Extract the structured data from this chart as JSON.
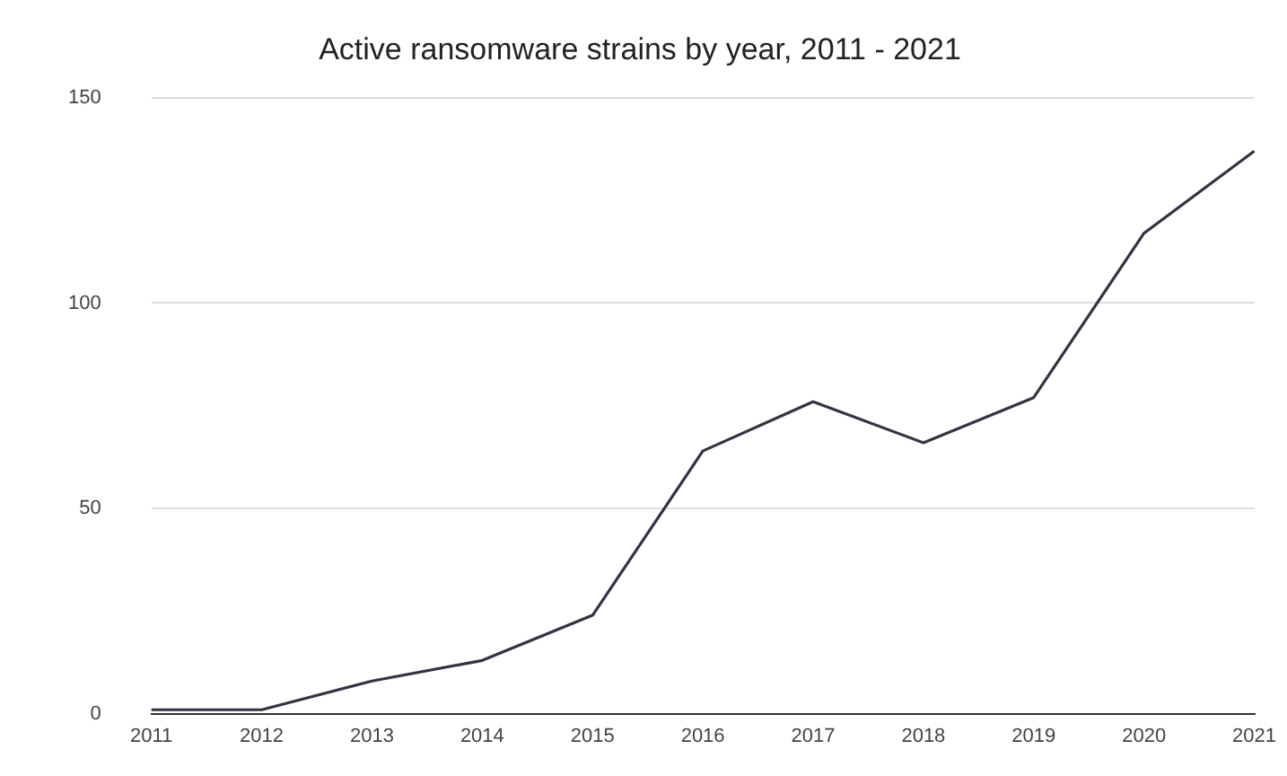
{
  "chart_data": {
    "type": "line",
    "title": "Active ransomware strains by year, 2011 - 2021",
    "categories": [
      "2011",
      "2012",
      "2013",
      "2014",
      "2015",
      "2016",
      "2017",
      "2018",
      "2019",
      "2020",
      "2021"
    ],
    "series": [
      {
        "color": "#333344",
        "values": [
          1,
          1,
          8,
          13,
          24,
          64,
          76,
          66,
          77,
          117,
          137
        ]
      }
    ],
    "ylim": [
      0,
      150
    ],
    "yticks": [
      0,
      50,
      100,
      150
    ],
    "grid": "y",
    "legend": false,
    "marker": "none"
  }
}
